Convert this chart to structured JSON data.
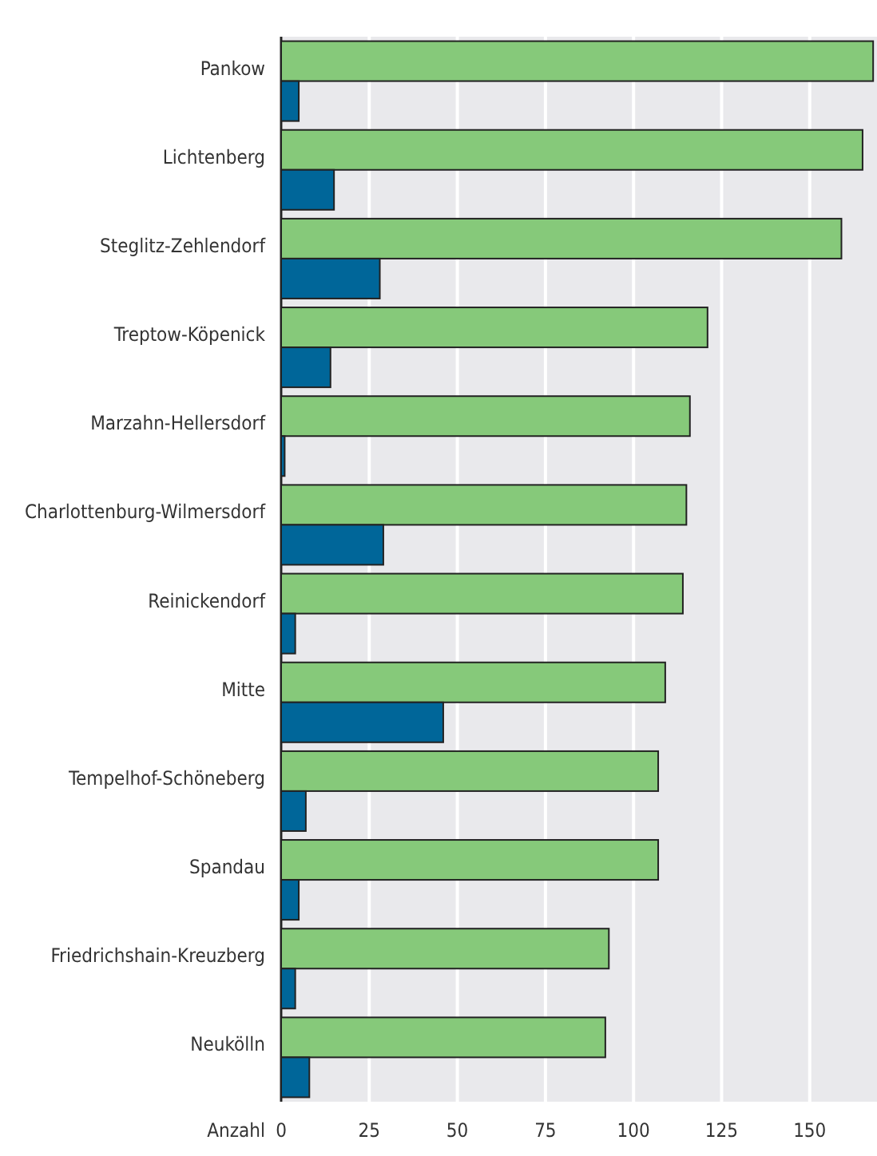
{
  "chart_data": {
    "type": "bar",
    "orientation": "horizontal",
    "xlabel": "Anzahl",
    "categories": [
      "Pankow",
      "Lichtenberg",
      "Steglitz-Zehlendorf",
      "Treptow-Köpenick",
      "Marzahn-Hellersdorf",
      "Charlottenburg-Wilmersdorf",
      "Reinickendorf",
      "Mitte",
      "Tempelhof-Schöneberg",
      "Spandau",
      "Friedrichshain-Kreuzberg",
      "Neukölln"
    ],
    "series": [
      {
        "color": "#86c97a",
        "values": [
          168,
          165,
          159,
          121,
          116,
          115,
          114,
          109,
          107,
          107,
          93,
          92
        ]
      },
      {
        "color": "#006699",
        "values": [
          5,
          15,
          28,
          14,
          1,
          29,
          4,
          46,
          7,
          5,
          4,
          8
        ]
      }
    ],
    "xlim": [
      0,
      170
    ],
    "xticks": [
      0,
      25,
      50,
      75,
      100,
      125,
      150
    ],
    "grid": "x"
  }
}
